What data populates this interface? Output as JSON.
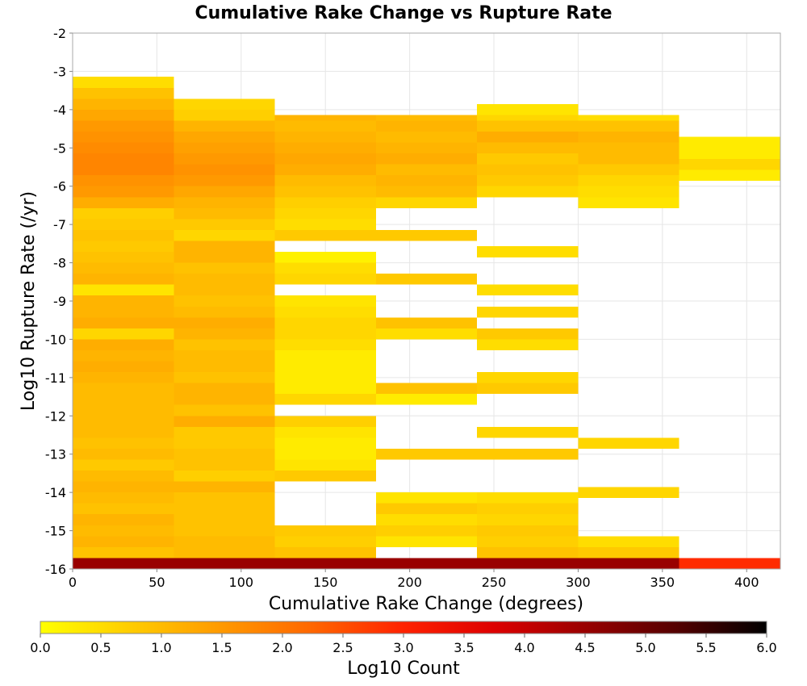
{
  "chart_data": {
    "type": "heatmap",
    "title": "Cumulative Rake Change vs Rupture Rate",
    "xlabel": "Cumulative Rake Change (degrees)",
    "ylabel": "Log10 Rupture Rate (/yr)",
    "xlim": [
      0,
      420
    ],
    "ylim": [
      -16,
      -2
    ],
    "xticks": [
      "0",
      "50",
      "100",
      "150",
      "200",
      "250",
      "300",
      "350",
      "400"
    ],
    "yticks": [
      "-2",
      "-3",
      "-4",
      "-5",
      "-6",
      "-7",
      "-8",
      "-9",
      "-10",
      "-11",
      "-12",
      "-13",
      "-14",
      "-15",
      "-16"
    ],
    "grid": true,
    "bin_width_x": 60,
    "bin_height_y": 0.2857,
    "colorbar": {
      "label": "Log10 Count",
      "range": [
        0,
        6
      ],
      "ticks": [
        "0.0",
        "0.5",
        "1.0",
        "1.5",
        "2.0",
        "2.5",
        "3.0",
        "3.5",
        "4.0",
        "4.5",
        "5.0",
        "5.5",
        "6.0"
      ],
      "colormap": [
        "#ffff00",
        "#ffcc00",
        "#ff9900",
        "#ff6600",
        "#ff2200",
        "#dd0000",
        "#990000",
        "#550000",
        "#000000"
      ]
    },
    "bins_note": "Each column is [x_start, x_end, [[y_bottom, y_top, log10_count], ...]]",
    "columns": [
      {
        "x0": 0,
        "x1": 60,
        "cells": [
          [
            -16.0,
            -15.714,
            4.5
          ],
          [
            -15.714,
            -15.429,
            0.9
          ],
          [
            -15.429,
            -15.143,
            1.1
          ],
          [
            -15.143,
            -14.857,
            1.0
          ],
          [
            -14.857,
            -14.571,
            1.1
          ],
          [
            -14.571,
            -14.286,
            0.9
          ],
          [
            -14.286,
            -14.0,
            1.0
          ],
          [
            -14.0,
            -13.714,
            1.1
          ],
          [
            -13.714,
            -13.429,
            1.0
          ],
          [
            -13.429,
            -13.143,
            0.8
          ],
          [
            -13.143,
            -12.857,
            1.0
          ],
          [
            -12.857,
            -12.571,
            0.9
          ],
          [
            -12.571,
            -12.286,
            1.0
          ],
          [
            -12.286,
            -12.0,
            1.0
          ],
          [
            -12.0,
            -11.714,
            1.0
          ],
          [
            -11.714,
            -11.429,
            1.0
          ],
          [
            -11.429,
            -11.143,
            1.0
          ],
          [
            -11.143,
            -10.857,
            1.1
          ],
          [
            -10.857,
            -10.571,
            1.2
          ],
          [
            -10.571,
            -10.286,
            1.1
          ],
          [
            -10.286,
            -10.0,
            1.2
          ],
          [
            -10.0,
            -9.714,
            0.6
          ],
          [
            -9.714,
            -9.429,
            1.2
          ],
          [
            -9.429,
            -9.143,
            1.1
          ],
          [
            -9.143,
            -8.857,
            1.1
          ],
          [
            -8.857,
            -8.571,
            0.4
          ],
          [
            -8.571,
            -8.286,
            1.1
          ],
          [
            -8.286,
            -8.0,
            1.0
          ],
          [
            -8.0,
            -7.714,
            0.9
          ],
          [
            -7.714,
            -7.429,
            0.8
          ],
          [
            -7.429,
            -7.143,
            0.9
          ],
          [
            -7.143,
            -6.857,
            0.8
          ],
          [
            -6.857,
            -6.571,
            0.7
          ],
          [
            -6.571,
            -6.286,
            1.2
          ],
          [
            -6.286,
            -6.0,
            1.5
          ],
          [
            -6.0,
            -5.714,
            1.6
          ],
          [
            -5.714,
            -5.429,
            1.8
          ],
          [
            -5.429,
            -5.143,
            1.8
          ],
          [
            -5.143,
            -4.857,
            1.7
          ],
          [
            -4.857,
            -4.571,
            1.6
          ],
          [
            -4.571,
            -4.286,
            1.5
          ],
          [
            -4.286,
            -4.0,
            1.3
          ],
          [
            -4.0,
            -3.714,
            1.1
          ],
          [
            -3.714,
            -3.429,
            0.9
          ],
          [
            -3.429,
            -3.143,
            0.5
          ]
        ]
      },
      {
        "x0": 60,
        "x1": 120,
        "cells": [
          [
            -16.0,
            -15.714,
            4.5
          ],
          [
            -15.714,
            -15.429,
            1.0
          ],
          [
            -15.429,
            -15.143,
            1.0
          ],
          [
            -15.143,
            -14.857,
            0.9
          ],
          [
            -14.857,
            -14.571,
            0.9
          ],
          [
            -14.571,
            -14.286,
            0.9
          ],
          [
            -14.286,
            -14.0,
            0.9
          ],
          [
            -14.0,
            -13.714,
            1.1
          ],
          [
            -13.714,
            -13.429,
            0.7
          ],
          [
            -13.429,
            -13.143,
            0.9
          ],
          [
            -13.143,
            -12.857,
            0.9
          ],
          [
            -12.857,
            -12.571,
            0.8
          ],
          [
            -12.571,
            -12.286,
            0.8
          ],
          [
            -12.286,
            -12.0,
            1.2
          ],
          [
            -12.0,
            -11.714,
            0.9
          ],
          [
            -11.714,
            -11.429,
            1.1
          ],
          [
            -11.429,
            -11.143,
            1.1
          ],
          [
            -11.143,
            -10.857,
            0.9
          ],
          [
            -10.857,
            -10.571,
            1.0
          ],
          [
            -10.571,
            -10.286,
            1.0
          ],
          [
            -10.286,
            -10.0,
            0.9
          ],
          [
            -10.0,
            -9.714,
            1.1
          ],
          [
            -9.714,
            -9.429,
            1.2
          ],
          [
            -9.429,
            -9.143,
            1.0
          ],
          [
            -9.143,
            -8.857,
            0.9
          ],
          [
            -8.857,
            -8.571,
            1.0
          ],
          [
            -8.571,
            -8.286,
            1.0
          ],
          [
            -8.286,
            -8.0,
            0.9
          ],
          [
            -8.0,
            -7.714,
            1.1
          ],
          [
            -7.714,
            -7.429,
            1.1
          ],
          [
            -7.429,
            -7.143,
            0.6
          ],
          [
            -7.143,
            -6.857,
            0.8
          ],
          [
            -6.857,
            -6.571,
            1.0
          ],
          [
            -6.571,
            -6.286,
            1.1
          ],
          [
            -6.286,
            -6.0,
            1.3
          ],
          [
            -6.0,
            -5.714,
            1.5
          ],
          [
            -5.714,
            -5.429,
            1.6
          ],
          [
            -5.429,
            -5.143,
            1.5
          ],
          [
            -5.143,
            -4.857,
            1.4
          ],
          [
            -4.857,
            -4.571,
            1.3
          ],
          [
            -4.571,
            -4.286,
            1.1
          ],
          [
            -4.286,
            -4.0,
            0.7
          ],
          [
            -4.0,
            -3.714,
            0.6
          ]
        ]
      },
      {
        "x0": 120,
        "x1": 180,
        "cells": [
          [
            -16.0,
            -15.714,
            4.5
          ],
          [
            -15.714,
            -15.429,
            0.9
          ],
          [
            -15.429,
            -15.143,
            0.7
          ],
          [
            -15.143,
            -14.857,
            0.8
          ],
          [
            -13.714,
            -13.429,
            0.8
          ],
          [
            -13.429,
            -13.143,
            0.4
          ],
          [
            -13.143,
            -12.857,
            0.3
          ],
          [
            -12.857,
            -12.571,
            0.3
          ],
          [
            -12.571,
            -12.286,
            0.4
          ],
          [
            -12.286,
            -12.0,
            0.7
          ],
          [
            -11.714,
            -11.429,
            0.6
          ],
          [
            -11.429,
            -11.143,
            0.3
          ],
          [
            -11.143,
            -10.857,
            0.3
          ],
          [
            -10.857,
            -10.571,
            0.3
          ],
          [
            -10.571,
            -10.286,
            0.3
          ],
          [
            -10.286,
            -10.0,
            0.5
          ],
          [
            -10.0,
            -9.714,
            0.6
          ],
          [
            -9.714,
            -9.429,
            0.6
          ],
          [
            -9.429,
            -9.143,
            0.5
          ],
          [
            -9.143,
            -8.857,
            0.4
          ],
          [
            -8.571,
            -8.286,
            0.6
          ],
          [
            -8.286,
            -8.0,
            0.5
          ],
          [
            -8.0,
            -7.714,
            0.2
          ],
          [
            -7.429,
            -7.143,
            0.8
          ],
          [
            -7.143,
            -6.857,
            0.5
          ],
          [
            -6.857,
            -6.571,
            0.6
          ],
          [
            -6.571,
            -6.286,
            0.7
          ],
          [
            -6.286,
            -6.0,
            0.9
          ],
          [
            -6.0,
            -5.714,
            1.0
          ],
          [
            -5.714,
            -5.429,
            1.2
          ],
          [
            -5.429,
            -5.143,
            1.3
          ],
          [
            -5.143,
            -4.857,
            1.2
          ],
          [
            -4.857,
            -4.571,
            1.1
          ],
          [
            -4.571,
            -4.286,
            1.0
          ],
          [
            -4.286,
            -4.143,
            1.1
          ]
        ]
      },
      {
        "x0": 180,
        "x1": 240,
        "cells": [
          [
            -16.0,
            -15.714,
            4.5
          ],
          [
            -15.429,
            -15.143,
            0.4
          ],
          [
            -15.143,
            -14.857,
            0.7
          ],
          [
            -14.857,
            -14.571,
            0.5
          ],
          [
            -14.571,
            -14.286,
            0.8
          ],
          [
            -14.286,
            -14.0,
            0.4
          ],
          [
            -13.143,
            -12.857,
            0.8
          ],
          [
            -11.714,
            -11.429,
            0.3
          ],
          [
            -11.429,
            -11.143,
            0.9
          ],
          [
            -10.0,
            -9.714,
            0.5
          ],
          [
            -9.714,
            -9.429,
            0.9
          ],
          [
            -8.571,
            -8.286,
            0.8
          ],
          [
            -7.429,
            -7.143,
            0.8
          ],
          [
            -6.571,
            -6.286,
            0.6
          ],
          [
            -6.286,
            -6.0,
            1.0
          ],
          [
            -6.0,
            -5.714,
            1.1
          ],
          [
            -5.714,
            -5.429,
            1.0
          ],
          [
            -5.429,
            -5.143,
            1.2
          ],
          [
            -5.143,
            -4.857,
            1.1
          ],
          [
            -4.857,
            -4.571,
            1.0
          ],
          [
            -4.571,
            -4.286,
            1.1
          ],
          [
            -4.286,
            -4.143,
            1.0
          ]
        ]
      },
      {
        "x0": 240,
        "x1": 300,
        "cells": [
          [
            -16.0,
            -15.714,
            4.5
          ],
          [
            -15.714,
            -15.429,
            0.9
          ],
          [
            -15.429,
            -15.143,
            0.7
          ],
          [
            -15.143,
            -14.857,
            0.8
          ],
          [
            -14.857,
            -14.571,
            0.6
          ],
          [
            -14.571,
            -14.286,
            0.7
          ],
          [
            -14.286,
            -14.0,
            0.5
          ],
          [
            -13.143,
            -12.857,
            0.8
          ],
          [
            -12.571,
            -12.286,
            0.6
          ],
          [
            -11.429,
            -11.143,
            0.8
          ],
          [
            -11.143,
            -10.857,
            0.6
          ],
          [
            -10.286,
            -10.0,
            0.5
          ],
          [
            -10.0,
            -9.714,
            0.8
          ],
          [
            -9.429,
            -9.143,
            0.6
          ],
          [
            -8.857,
            -8.571,
            0.5
          ],
          [
            -7.857,
            -7.571,
            0.5
          ],
          [
            -6.286,
            -6.0,
            0.6
          ],
          [
            -6.0,
            -5.714,
            0.8
          ],
          [
            -5.714,
            -5.429,
            0.9
          ],
          [
            -5.429,
            -5.143,
            0.8
          ],
          [
            -5.143,
            -4.857,
            1.0
          ],
          [
            -4.857,
            -4.571,
            1.2
          ],
          [
            -4.571,
            -4.286,
            0.9
          ],
          [
            -4.286,
            -4.143,
            0.6
          ],
          [
            -4.143,
            -3.857,
            0.4
          ]
        ]
      },
      {
        "x0": 300,
        "x1": 360,
        "cells": [
          [
            -16.0,
            -15.714,
            4.5
          ],
          [
            -15.714,
            -15.429,
            0.8
          ],
          [
            -15.429,
            -15.143,
            0.5
          ],
          [
            -14.143,
            -13.857,
            0.6
          ],
          [
            -12.857,
            -12.571,
            0.6
          ],
          [
            -6.571,
            -6.286,
            0.4
          ],
          [
            -6.286,
            -6.0,
            0.5
          ],
          [
            -6.0,
            -5.714,
            0.6
          ],
          [
            -5.714,
            -5.429,
            0.8
          ],
          [
            -5.429,
            -5.143,
            1.0
          ],
          [
            -5.143,
            -4.857,
            1.0
          ],
          [
            -4.857,
            -4.571,
            1.1
          ],
          [
            -4.571,
            -4.286,
            0.9
          ],
          [
            -4.286,
            -4.143,
            0.5
          ]
        ]
      },
      {
        "x0": 360,
        "x1": 420,
        "cells": [
          [
            -16.0,
            -15.714,
            2.9
          ],
          [
            -5.857,
            -5.571,
            0.3
          ],
          [
            -5.571,
            -5.286,
            0.6
          ],
          [
            -5.286,
            -4.714,
            0.3
          ]
        ]
      }
    ]
  }
}
